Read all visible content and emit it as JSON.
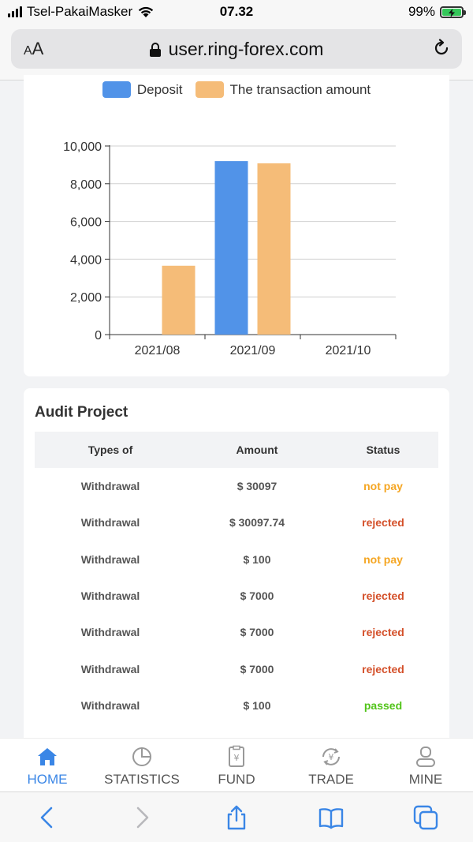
{
  "status_bar": {
    "carrier": "Tsel-PakaiMasker",
    "time": "07.32",
    "battery": "99%"
  },
  "browser": {
    "aa_label_small": "A",
    "aa_label_large": "A",
    "url": "user.ring-forex.com"
  },
  "chart_data": {
    "type": "bar",
    "categories": [
      "2021/08",
      "2021/09",
      "2021/10"
    ],
    "series": [
      {
        "name": "Deposit",
        "color": "#5193e8",
        "values": [
          0,
          9200,
          0
        ]
      },
      {
        "name": "The transaction amount",
        "color": "#f5bc78",
        "values": [
          3650,
          9080,
          0
        ]
      }
    ],
    "y_ticks": [
      "0",
      "2,000",
      "4,000",
      "6,000",
      "8,000",
      "10,000"
    ],
    "ylim": [
      0,
      10000
    ],
    "grid": true,
    "legend_position": "top"
  },
  "audit": {
    "title": "Audit Project",
    "headers": [
      "Types of",
      "Amount",
      "Status"
    ],
    "rows": [
      {
        "type": "Withdrawal",
        "amount": "$ 30097",
        "status": "not pay",
        "status_key": "notpay"
      },
      {
        "type": "Withdrawal",
        "amount": "$ 30097.74",
        "status": "rejected",
        "status_key": "rejected"
      },
      {
        "type": "Withdrawal",
        "amount": "$ 100",
        "status": "not pay",
        "status_key": "notpay"
      },
      {
        "type": "Withdrawal",
        "amount": "$ 7000",
        "status": "rejected",
        "status_key": "rejected"
      },
      {
        "type": "Withdrawal",
        "amount": "$ 7000",
        "status": "rejected",
        "status_key": "rejected"
      },
      {
        "type": "Withdrawal",
        "amount": "$ 7000",
        "status": "rejected",
        "status_key": "rejected"
      },
      {
        "type": "Withdrawal",
        "amount": "$ 100",
        "status": "passed",
        "status_key": "passed"
      }
    ]
  },
  "tabbar": {
    "items": [
      {
        "label": "HOME",
        "icon": "home-icon",
        "active": true
      },
      {
        "label": "STATISTICS",
        "icon": "pie-chart-icon",
        "active": false
      },
      {
        "label": "FUND",
        "icon": "fund-document-icon",
        "active": false
      },
      {
        "label": "TRADE",
        "icon": "trade-exchange-icon",
        "active": false
      },
      {
        "label": "MINE",
        "icon": "user-icon",
        "active": false
      }
    ]
  },
  "colors": {
    "accent": "#3a86e6",
    "not_pay": "#f5a623",
    "rejected": "#d4502a",
    "passed": "#52c41a"
  }
}
